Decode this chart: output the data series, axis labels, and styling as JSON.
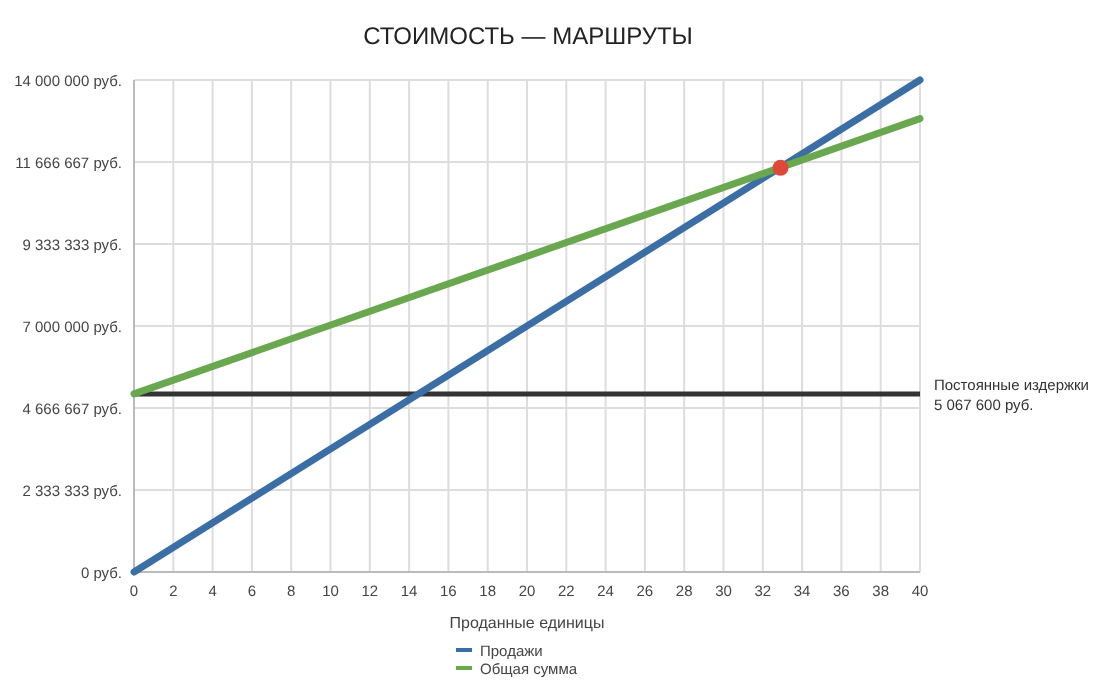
{
  "chart_data": {
    "type": "line",
    "title": "СТОИМОСТЬ — МАРШРУТЫ",
    "xlabel": "Проданные единицы",
    "x": [
      0,
      40
    ],
    "series": [
      {
        "name": "Продажи",
        "color": "#3a6ea5",
        "values": [
          0,
          14000000
        ]
      },
      {
        "name": "Общая сумма",
        "color": "#6aa84f",
        "values": [
          5067600,
          12900000
        ]
      },
      {
        "type": "scatter",
        "color": "#e0483a",
        "x": [
          32.9
        ],
        "values": [
          11500000
        ],
        "marker": "circle"
      }
    ],
    "xlim": [
      0,
      40
    ],
    "xticks": [
      0,
      2,
      4,
      6,
      8,
      10,
      12,
      14,
      16,
      18,
      20,
      22,
      24,
      26,
      28,
      30,
      32,
      34,
      36,
      38,
      40
    ],
    "ylim": [
      0,
      14000000
    ],
    "yticks": [
      {
        "value": 0,
        "label": "0 руб."
      },
      {
        "value": 2333333,
        "label": "2 333 333 руб."
      },
      {
        "value": 4666667,
        "label": "4 666 667 руб."
      },
      {
        "value": 7000000,
        "label": "7 000 000 руб."
      },
      {
        "value": 9333333,
        "label": "9 333 333 руб."
      },
      {
        "value": 11666667,
        "label": "11 666 667 руб."
      },
      {
        "value": 14000000,
        "label": "14 000 000 руб."
      }
    ],
    "ref_lines": [
      {
        "axis": "y",
        "value": 5067600,
        "label": "Постоянные издержки\n5 067 600 руб.",
        "color": "#333333"
      }
    ],
    "grid": true,
    "legend": "bottom",
    "marker": "none",
    "line_style": "solid"
  }
}
